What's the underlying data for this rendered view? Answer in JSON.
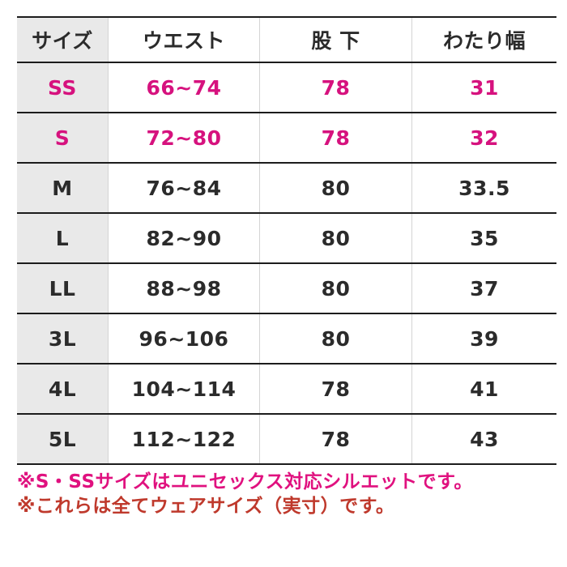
{
  "table": {
    "headers": [
      "サイズ",
      "ウエスト",
      "股 下",
      "わたり幅"
    ],
    "rows": [
      {
        "size": "SS",
        "waist": "66~74",
        "inseam": "78",
        "watari": "31",
        "highlight": true
      },
      {
        "size": "S",
        "waist": "72~80",
        "inseam": "78",
        "watari": "32",
        "highlight": true
      },
      {
        "size": "M",
        "waist": "76~84",
        "inseam": "80",
        "watari": "33.5",
        "highlight": false
      },
      {
        "size": "L",
        "waist": "82~90",
        "inseam": "80",
        "watari": "35",
        "highlight": false
      },
      {
        "size": "LL",
        "waist": "88~98",
        "inseam": "80",
        "watari": "37",
        "highlight": false
      },
      {
        "size": "3L",
        "waist": "96~106",
        "inseam": "80",
        "watari": "39",
        "highlight": false
      },
      {
        "size": "4L",
        "waist": "104~114",
        "inseam": "78",
        "watari": "41",
        "highlight": false
      },
      {
        "size": "5L",
        "waist": "112~122",
        "inseam": "78",
        "watari": "43",
        "highlight": false
      }
    ]
  },
  "notes": [
    {
      "text": "※S・SSサイズはユニセックス対応シルエットです。"
    },
    {
      "text": "※これらは全てウェアサイズ（実寸）です。"
    }
  ],
  "colors": {
    "highlight_magenta": "#d6127e",
    "note_unisex_magenta": "#e0117f",
    "note_actual_red": "#bf392c",
    "size_column_gray": "#e9e9e9",
    "row_line_dark": "#1c1c1c",
    "column_divider_gray": "#d4d4d4",
    "text_dark": "#2b2b2b"
  }
}
